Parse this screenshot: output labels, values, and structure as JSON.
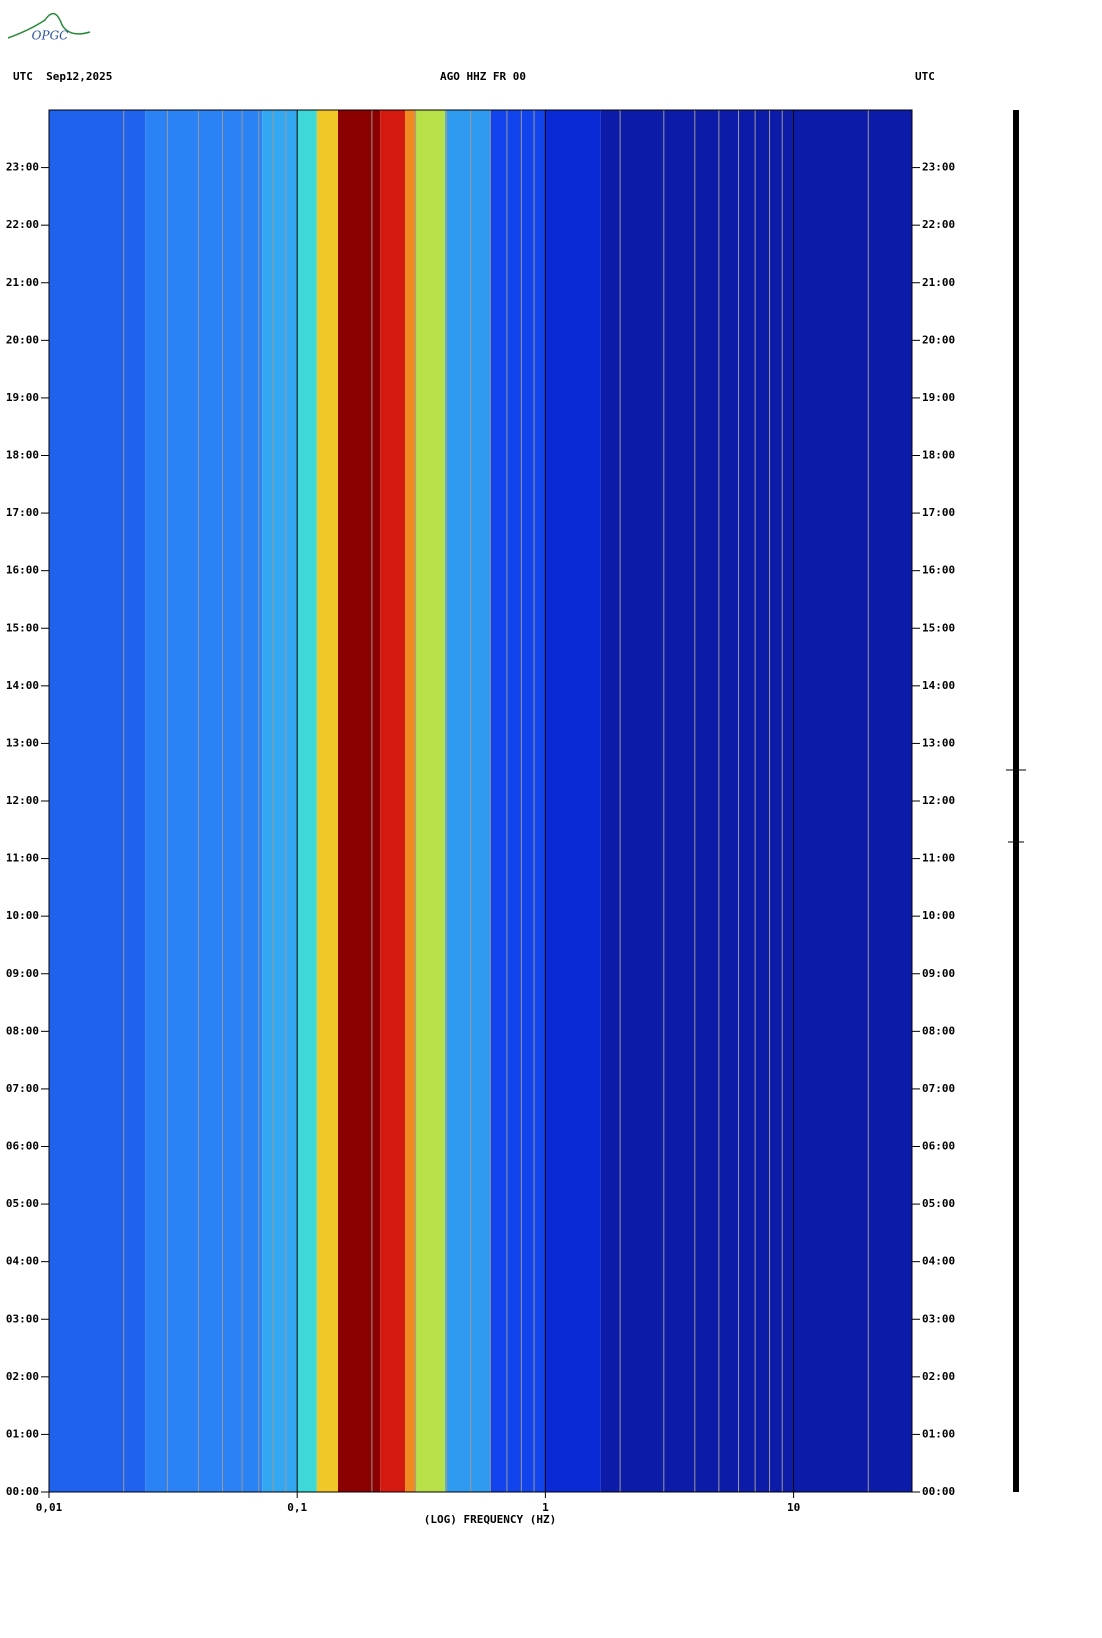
{
  "logo": "OPGC",
  "chart_data": {
    "type": "spectrogram",
    "title": "AGO HHZ FR 00",
    "left_header": "UTC  Sep12,2025",
    "right_header": "UTC",
    "x_label": "(LOG) FREQUENCY (HZ)",
    "xscale": "log",
    "xlim": [
      0.01,
      30
    ],
    "xticks": [
      {
        "value": 0.01,
        "label": "0,01"
      },
      {
        "value": 0.1,
        "label": "0,1"
      },
      1,
      10
    ],
    "xgrid_minor": [
      0.02,
      0.03,
      0.04,
      0.05,
      0.06,
      0.07,
      0.08,
      0.09,
      0.2,
      0.3,
      0.4,
      0.5,
      0.6,
      0.7,
      0.8,
      0.9,
      2,
      3,
      4,
      5,
      6,
      7,
      8,
      9,
      20
    ],
    "ylim": [
      0,
      24
    ],
    "yticks": [
      {
        "value": 0,
        "label": "00:00"
      },
      {
        "value": 1,
        "label": "01:00"
      },
      {
        "value": 2,
        "label": "02:00"
      },
      {
        "value": 3,
        "label": "03:00"
      },
      {
        "value": 4,
        "label": "04:00"
      },
      {
        "value": 5,
        "label": "05:00"
      },
      {
        "value": 6,
        "label": "06:00"
      },
      {
        "value": 7,
        "label": "07:00"
      },
      {
        "value": 8,
        "label": "08:00"
      },
      {
        "value": 9,
        "label": "09:00"
      },
      {
        "value": 10,
        "label": "10:00"
      },
      {
        "value": 11,
        "label": "11:00"
      },
      {
        "value": 12,
        "label": "12:00"
      },
      {
        "value": 13,
        "label": "13:00"
      },
      {
        "value": 14,
        "label": "14:00"
      },
      {
        "value": 15,
        "label": "15:00"
      },
      {
        "value": 16,
        "label": "16:00"
      },
      {
        "value": 17,
        "label": "17:00"
      },
      {
        "value": 18,
        "label": "18:00"
      },
      {
        "value": 19,
        "label": "19:00"
      },
      {
        "value": 20,
        "label": "20:00"
      },
      {
        "value": 21,
        "label": "21:00"
      },
      {
        "value": 22,
        "label": "22:00"
      },
      {
        "value": 23,
        "label": "23:00"
      }
    ],
    "bands": [
      {
        "from": 0.01,
        "to": 0.0244,
        "color": "#1f62ee"
      },
      {
        "from": 0.0244,
        "to": 0.0723,
        "color": "#2b82f4"
      },
      {
        "from": 0.0723,
        "to": 0.1,
        "color": "#33a8f2"
      },
      {
        "from": 0.1,
        "to": 0.12,
        "color": "#3ed8d8"
      },
      {
        "from": 0.12,
        "to": 0.146,
        "color": "#f0c828"
      },
      {
        "from": 0.146,
        "to": 0.216,
        "color": "#8b0000"
      },
      {
        "from": 0.216,
        "to": 0.272,
        "color": "#d41a10"
      },
      {
        "from": 0.272,
        "to": 0.299,
        "color": "#f08a20"
      },
      {
        "from": 0.299,
        "to": 0.395,
        "color": "#b8e048"
      },
      {
        "from": 0.395,
        "to": 0.6,
        "color": "#2e9af0"
      },
      {
        "from": 0.6,
        "to": 1,
        "color": "#1244ee"
      },
      {
        "from": 1,
        "to": 1.67,
        "color": "#0a2ad6"
      },
      {
        "from": 1.67,
        "to": 30,
        "color": "#0c1ca8"
      }
    ]
  }
}
